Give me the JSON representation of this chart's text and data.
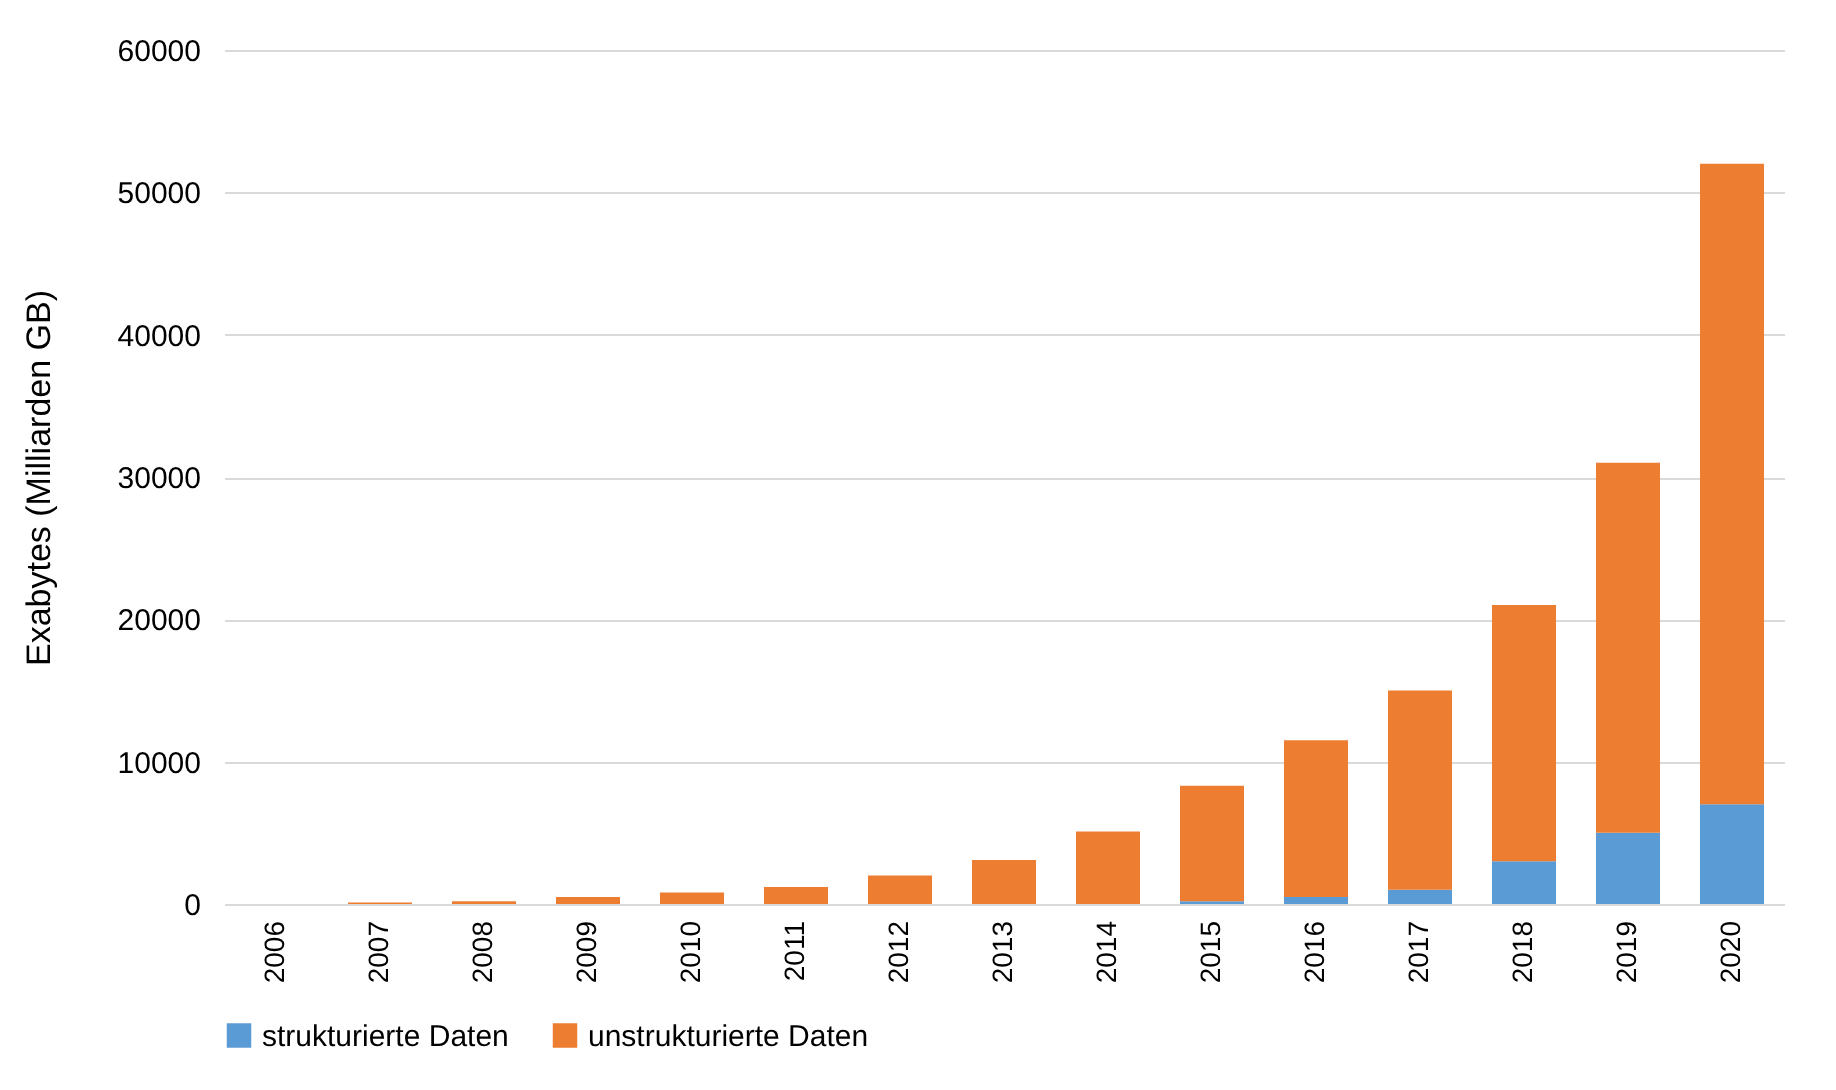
{
  "chart_data": {
    "type": "bar",
    "ylabel": "Exabytes (Milliarden GB)",
    "stacked": true,
    "categories": [
      "2006",
      "2007",
      "2008",
      "2009",
      "2010",
      "2011",
      "2012",
      "2013",
      "2014",
      "2015",
      "2016",
      "2017",
      "2018",
      "2019",
      "2020"
    ],
    "series": [
      {
        "name": "strukturierte Daten",
        "color": "#5b9bd5",
        "values": [
          0,
          0,
          0,
          0,
          0,
          0,
          0,
          0,
          0,
          200,
          500,
          1000,
          3000,
          5000,
          7000
        ]
      },
      {
        "name": "unstrukturierte Daten",
        "color": "#ed7d31",
        "values": [
          0,
          100,
          200,
          500,
          800,
          1200,
          2000,
          3100,
          5100,
          8100,
          11000,
          14000,
          18000,
          26000,
          45000
        ]
      }
    ],
    "ylim": [
      0,
      60000
    ],
    "yticks": [
      0,
      10000,
      20000,
      30000,
      40000,
      50000,
      60000
    ],
    "grid": "y",
    "legend": "bottom"
  }
}
